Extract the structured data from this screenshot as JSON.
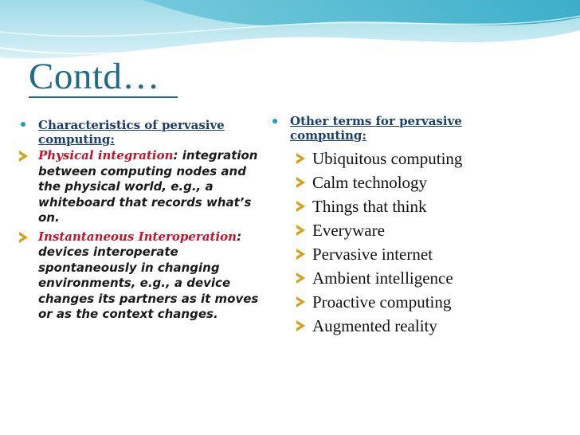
{
  "slide": {
    "title": "Contd…",
    "colors": {
      "title": "#1f6b8a",
      "heading": "#1a3f6e",
      "term": "#c0142a",
      "bullet": "#1e9fbf",
      "arrow": "#d4a11a"
    }
  },
  "left": {
    "heading": "Characteristics of pervasive computing:",
    "items": [
      {
        "term": "Physical integration",
        "text": ": integration between computing nodes and the physical world, e.g., a whiteboard that records what’s on."
      },
      {
        "term": "Instantaneous Interoperation",
        "text": ": devices interoperate spontaneously in changing environments, e.g., a device changes its partners as it moves or as the context changes."
      }
    ]
  },
  "right": {
    "heading": "Other terms for pervasive computing:",
    "items": [
      "Ubiquitous computing",
      "Calm technology",
      "Things that think",
      "Everyware",
      "Pervasive internet",
      "Ambient intelligence",
      "Proactive computing",
      "Augmented reality"
    ]
  }
}
